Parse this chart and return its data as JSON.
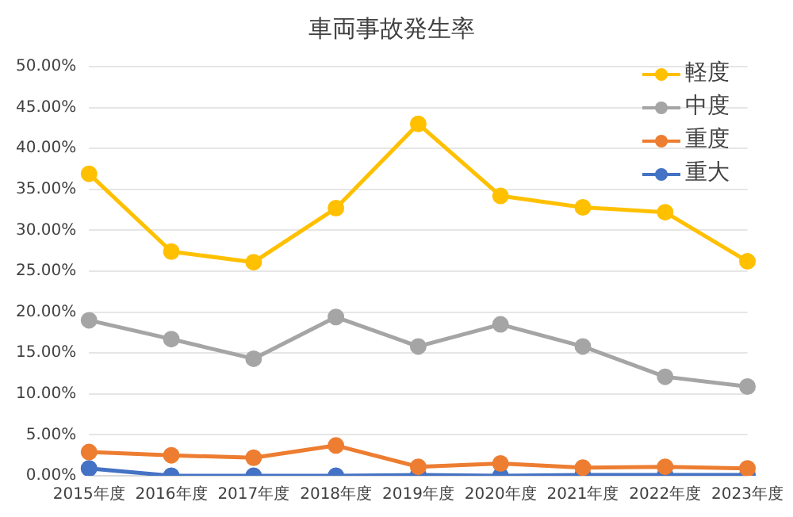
{
  "chart_data": {
    "type": "line",
    "title": "車両事故発生率",
    "categories": [
      "2015年度",
      "2016年度",
      "2017年度",
      "2018年度",
      "2019年度",
      "2020年度",
      "2021年度",
      "2022年度",
      "2023年度"
    ],
    "series": [
      {
        "name": "軽度",
        "color": "#ffc000",
        "values": [
          36.9,
          27.4,
          26.1,
          32.7,
          43.0,
          34.2,
          32.8,
          32.2,
          26.2
        ]
      },
      {
        "name": "中度",
        "color": "#a5a5a5",
        "values": [
          19.0,
          16.7,
          14.3,
          19.4,
          15.8,
          18.5,
          15.8,
          12.1,
          10.9
        ]
      },
      {
        "name": "重度",
        "color": "#ed7d31",
        "values": [
          2.9,
          2.5,
          2.2,
          3.7,
          1.1,
          1.5,
          1.0,
          1.1,
          0.9
        ]
      },
      {
        "name": "重大",
        "color": "#4472c4",
        "values": [
          0.9,
          0.0,
          0.0,
          0.0,
          0.1,
          0.0,
          0.1,
          0.1,
          0.1
        ]
      }
    ],
    "ylim": [
      0,
      50
    ],
    "yticks": [
      {
        "value": 0,
        "label": "0.00%"
      },
      {
        "value": 5,
        "label": "5.00%"
      },
      {
        "value": 10,
        "label": "10.00%"
      },
      {
        "value": 15,
        "label": "15.00%"
      },
      {
        "value": 20,
        "label": "20.00%"
      },
      {
        "value": 25,
        "label": "25.00%"
      },
      {
        "value": 30,
        "label": "30.00%"
      },
      {
        "value": 35,
        "label": "35.00%"
      },
      {
        "value": 40,
        "label": "40.00%"
      },
      {
        "value": 45,
        "label": "45.00%"
      },
      {
        "value": 50,
        "label": "50.00%"
      }
    ],
    "grid": "y",
    "legend": "top right",
    "marker": "circle",
    "line_style": "solid"
  }
}
